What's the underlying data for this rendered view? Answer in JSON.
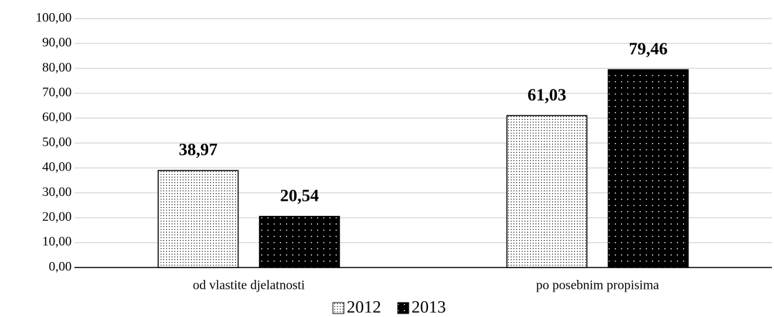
{
  "chart_data": {
    "type": "bar",
    "categories": [
      "od vlastite djelatnosti",
      "po posebnim propisima"
    ],
    "series": [
      {
        "name": "2012",
        "color": "#ffffff",
        "values": [
          38.97,
          61.03
        ],
        "value_labels": [
          "38,97",
          "61,03"
        ]
      },
      {
        "name": "2013",
        "color": "#000000",
        "values": [
          20.54,
          79.46
        ],
        "value_labels": [
          "20,54",
          "79,46"
        ]
      }
    ],
    "ylim": [
      0,
      100
    ],
    "yticks": [
      {
        "value": 0,
        "label": "0,00"
      },
      {
        "value": 10,
        "label": "10,00"
      },
      {
        "value": 20,
        "label": "20,00"
      },
      {
        "value": 30,
        "label": "30,00"
      },
      {
        "value": 40,
        "label": "40,00"
      },
      {
        "value": 50,
        "label": "50,00"
      },
      {
        "value": 60,
        "label": "60,00"
      },
      {
        "value": 70,
        "label": "70,00"
      },
      {
        "value": 80,
        "label": "80,00"
      },
      {
        "value": 90,
        "label": "90,00"
      },
      {
        "value": 100,
        "label": "100,00"
      }
    ],
    "grid": true,
    "legend": "bottom"
  }
}
